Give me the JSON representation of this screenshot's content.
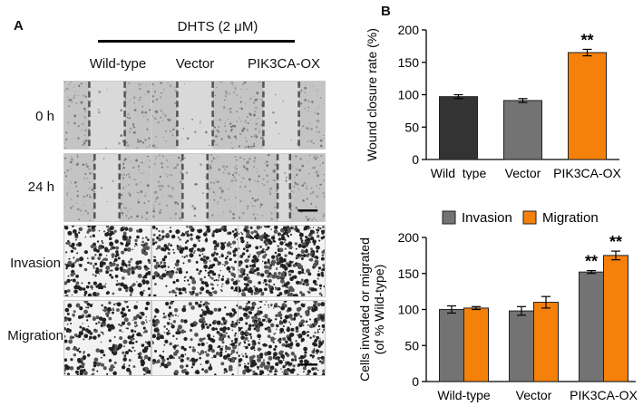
{
  "panel_a": {
    "letter": "A",
    "treatment": "DHTS (2 μM)",
    "columns": [
      "Wild-type",
      "Vector",
      "PIK3CA-OX"
    ],
    "rows": [
      "0 h",
      "24 h",
      "Invasion",
      "Migration"
    ]
  },
  "panel_b": {
    "letter": "B"
  },
  "chart_data": [
    {
      "type": "bar",
      "categories": [
        "Wild_type",
        "Vector",
        "PIK3CA-OX"
      ],
      "values": [
        97,
        91,
        165
      ],
      "errors": [
        3,
        3,
        5
      ],
      "significance": [
        "",
        "",
        "**"
      ],
      "colors": [
        "#333333",
        "#737373",
        "#f5800a"
      ],
      "ylabel": "Wound closure rate (%)",
      "ylim": [
        0,
        200
      ],
      "yticks": [
        0,
        50,
        100,
        150,
        200
      ]
    },
    {
      "type": "bar",
      "categories": [
        "Wild-type",
        "Vector",
        "PIK3CA-OX"
      ],
      "series": [
        {
          "name": "Invasion",
          "values": [
            100,
            98,
            152
          ],
          "errors": [
            5,
            6,
            2
          ],
          "significance": [
            "",
            "",
            "**"
          ],
          "color": "#737373"
        },
        {
          "name": "Migration",
          "values": [
            102,
            110,
            175
          ],
          "errors": [
            2,
            8,
            6
          ],
          "significance": [
            "",
            "",
            "**"
          ],
          "color": "#f5800a"
        }
      ],
      "ylabel": "Cells invaded or migrated (of % Wild-type)",
      "ylabel_lines": [
        "Cells invaded or migrated",
        "(of % Wild-type)"
      ],
      "ylim": [
        0,
        200
      ],
      "yticks": [
        0,
        50,
        100,
        150,
        200
      ],
      "legend_position": "top"
    }
  ]
}
